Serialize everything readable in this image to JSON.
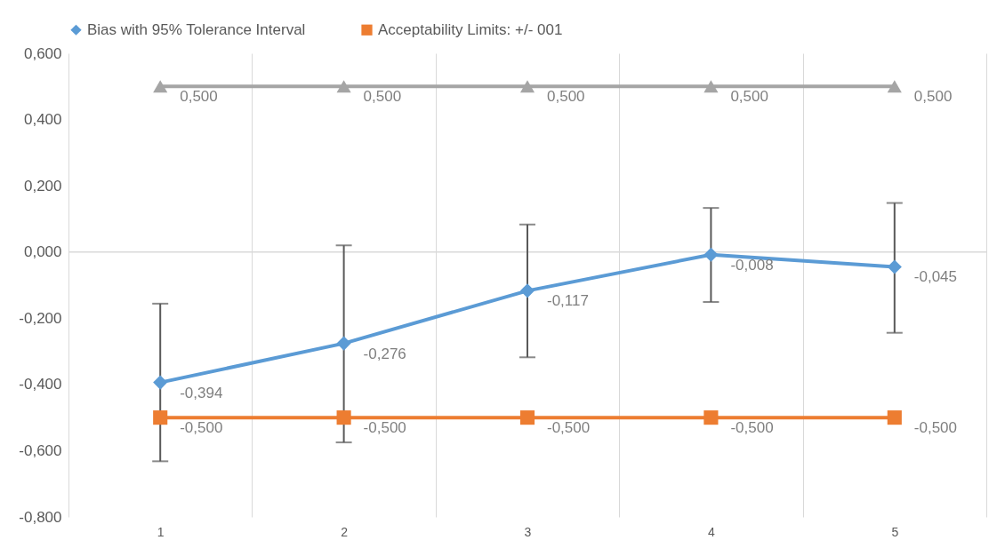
{
  "chart_data": {
    "type": "line",
    "categories": [
      "1",
      "2",
      "3",
      "4",
      "5"
    ],
    "series": [
      {
        "name": "Bias with 95% Tolerance Interval",
        "color": "#5b9bd5",
        "marker": "diamond",
        "values": [
          -0.394,
          -0.276,
          -0.117,
          -0.008,
          -0.045
        ],
        "errors": [
          [
            -0.632,
            -0.156
          ],
          [
            -0.575,
            0.02
          ],
          [
            -0.318,
            0.083
          ],
          [
            -0.151,
            0.133
          ],
          [
            -0.244,
            0.148
          ]
        ],
        "value_labels": [
          "-0,394",
          "-0,276",
          "-0,117",
          "-0,008",
          "-0,045"
        ]
      },
      {
        "name": "Acceptability Limits: +/- 001",
        "color": "#ed7d31",
        "marker": "square",
        "values": [
          -0.5,
          -0.5,
          -0.5,
          -0.5,
          -0.5
        ],
        "value_labels": [
          "-0,500",
          "-0,500",
          "-0,500",
          "-0,500",
          "-0,500"
        ]
      },
      {
        "color": "#a5a5a5",
        "marker": "triangle",
        "values": [
          0.5,
          0.5,
          0.5,
          0.5,
          0.5
        ],
        "value_labels": [
          "0,500",
          "0,500",
          "0,500",
          "0,500",
          "0,500"
        ]
      }
    ],
    "ylim": [
      -0.8,
      0.6
    ],
    "yticks": [
      {
        "value": -0.8,
        "label": "-0,800"
      },
      {
        "value": -0.6,
        "label": "-0,600"
      },
      {
        "value": -0.4,
        "label": "-0,400"
      },
      {
        "value": -0.2,
        "label": "-0,200"
      },
      {
        "value": 0,
        "label": "0,000"
      },
      {
        "value": 0.2,
        "label": "0,200"
      },
      {
        "value": 0.4,
        "label": "0,400"
      },
      {
        "value": 0.6,
        "label": "0,600"
      }
    ],
    "ref_lines": [
      {
        "axis": "y",
        "value": 0,
        "color": "#d9d9d9"
      }
    ],
    "grid": "x",
    "legend": "top",
    "line_style": "solid"
  }
}
